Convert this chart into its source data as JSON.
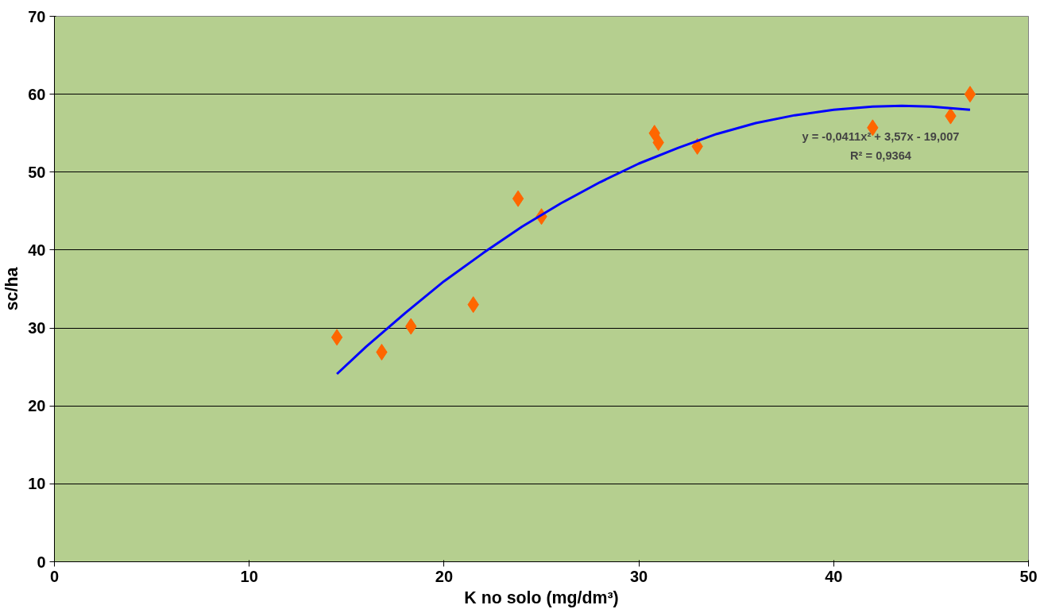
{
  "chart_data": {
    "type": "scatter",
    "xlabel": "K no solo (mg/dm³)",
    "ylabel": "sc/ha",
    "xlim": [
      0,
      50
    ],
    "ylim": [
      0,
      70
    ],
    "xticks": [
      0,
      10,
      20,
      30,
      40,
      50
    ],
    "yticks": [
      0,
      10,
      20,
      30,
      40,
      50,
      60,
      70
    ],
    "grid": "y",
    "annotations": [
      "y = -0,0411x² + 3,57x - 19,007",
      "R² = 0,9364"
    ],
    "series": [
      {
        "marker": "diamond",
        "color": "#ff6600",
        "x": [
          14.5,
          16.8,
          18.3,
          21.5,
          23.8,
          25.0,
          30.8,
          31.0,
          33.0,
          42.0,
          46.0,
          47.0
        ],
        "values": [
          28.8,
          26.9,
          30.2,
          33.0,
          46.6,
          44.3,
          55.0,
          53.8,
          53.3,
          55.7,
          57.2,
          60.0
        ]
      },
      {
        "type": "line",
        "line_style": "solid",
        "color": "#0000ff",
        "x": [
          14.5,
          16,
          18,
          20,
          22,
          24,
          26,
          28,
          30,
          32,
          34,
          36,
          38,
          40,
          42,
          43.5,
          45,
          47
        ],
        "values": [
          24.1,
          27.6,
          31.9,
          36.0,
          39.6,
          43.0,
          46.0,
          48.7,
          51.1,
          53.1,
          54.9,
          56.3,
          57.3,
          58.0,
          58.4,
          58.5,
          58.4,
          58.0
        ]
      }
    ]
  }
}
